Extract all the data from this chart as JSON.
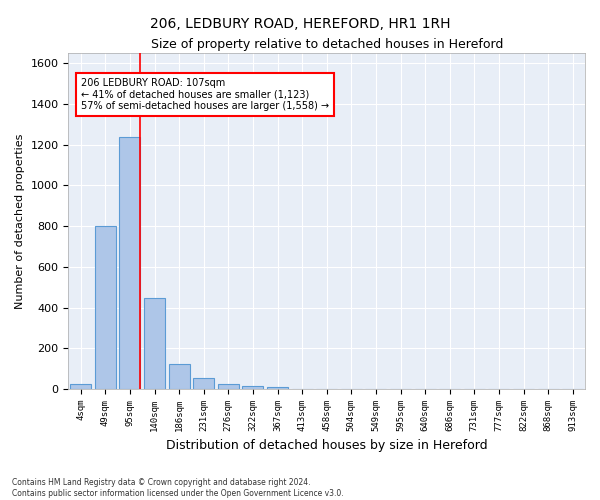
{
  "title": "206, LEDBURY ROAD, HEREFORD, HR1 1RH",
  "subtitle": "Size of property relative to detached houses in Hereford",
  "xlabel": "Distribution of detached houses by size in Hereford",
  "ylabel": "Number of detached properties",
  "bar_color": "#aec6e8",
  "bar_edge_color": "#5b9bd5",
  "background_color": "#e8eef7",
  "grid_color": "#ffffff",
  "categories": [
    "4sqm",
    "49sqm",
    "95sqm",
    "140sqm",
    "186sqm",
    "231sqm",
    "276sqm",
    "322sqm",
    "367sqm",
    "413sqm",
    "458sqm",
    "504sqm",
    "549sqm",
    "595sqm",
    "640sqm",
    "686sqm",
    "731sqm",
    "777sqm",
    "822sqm",
    "868sqm",
    "913sqm"
  ],
  "values": [
    25,
    800,
    1240,
    450,
    125,
    55,
    25,
    15,
    10,
    0,
    0,
    0,
    0,
    0,
    0,
    0,
    0,
    0,
    0,
    0,
    0
  ],
  "ylim": [
    0,
    1650
  ],
  "yticks": [
    0,
    200,
    400,
    600,
    800,
    1000,
    1200,
    1400,
    1600
  ],
  "property_line_x": 2.43,
  "annotation_text": "206 LEDBURY ROAD: 107sqm\n← 41% of detached houses are smaller (1,123)\n57% of semi-detached houses are larger (1,558) →",
  "footer_line1": "Contains HM Land Registry data © Crown copyright and database right 2024.",
  "footer_line2": "Contains public sector information licensed under the Open Government Licence v3.0."
}
